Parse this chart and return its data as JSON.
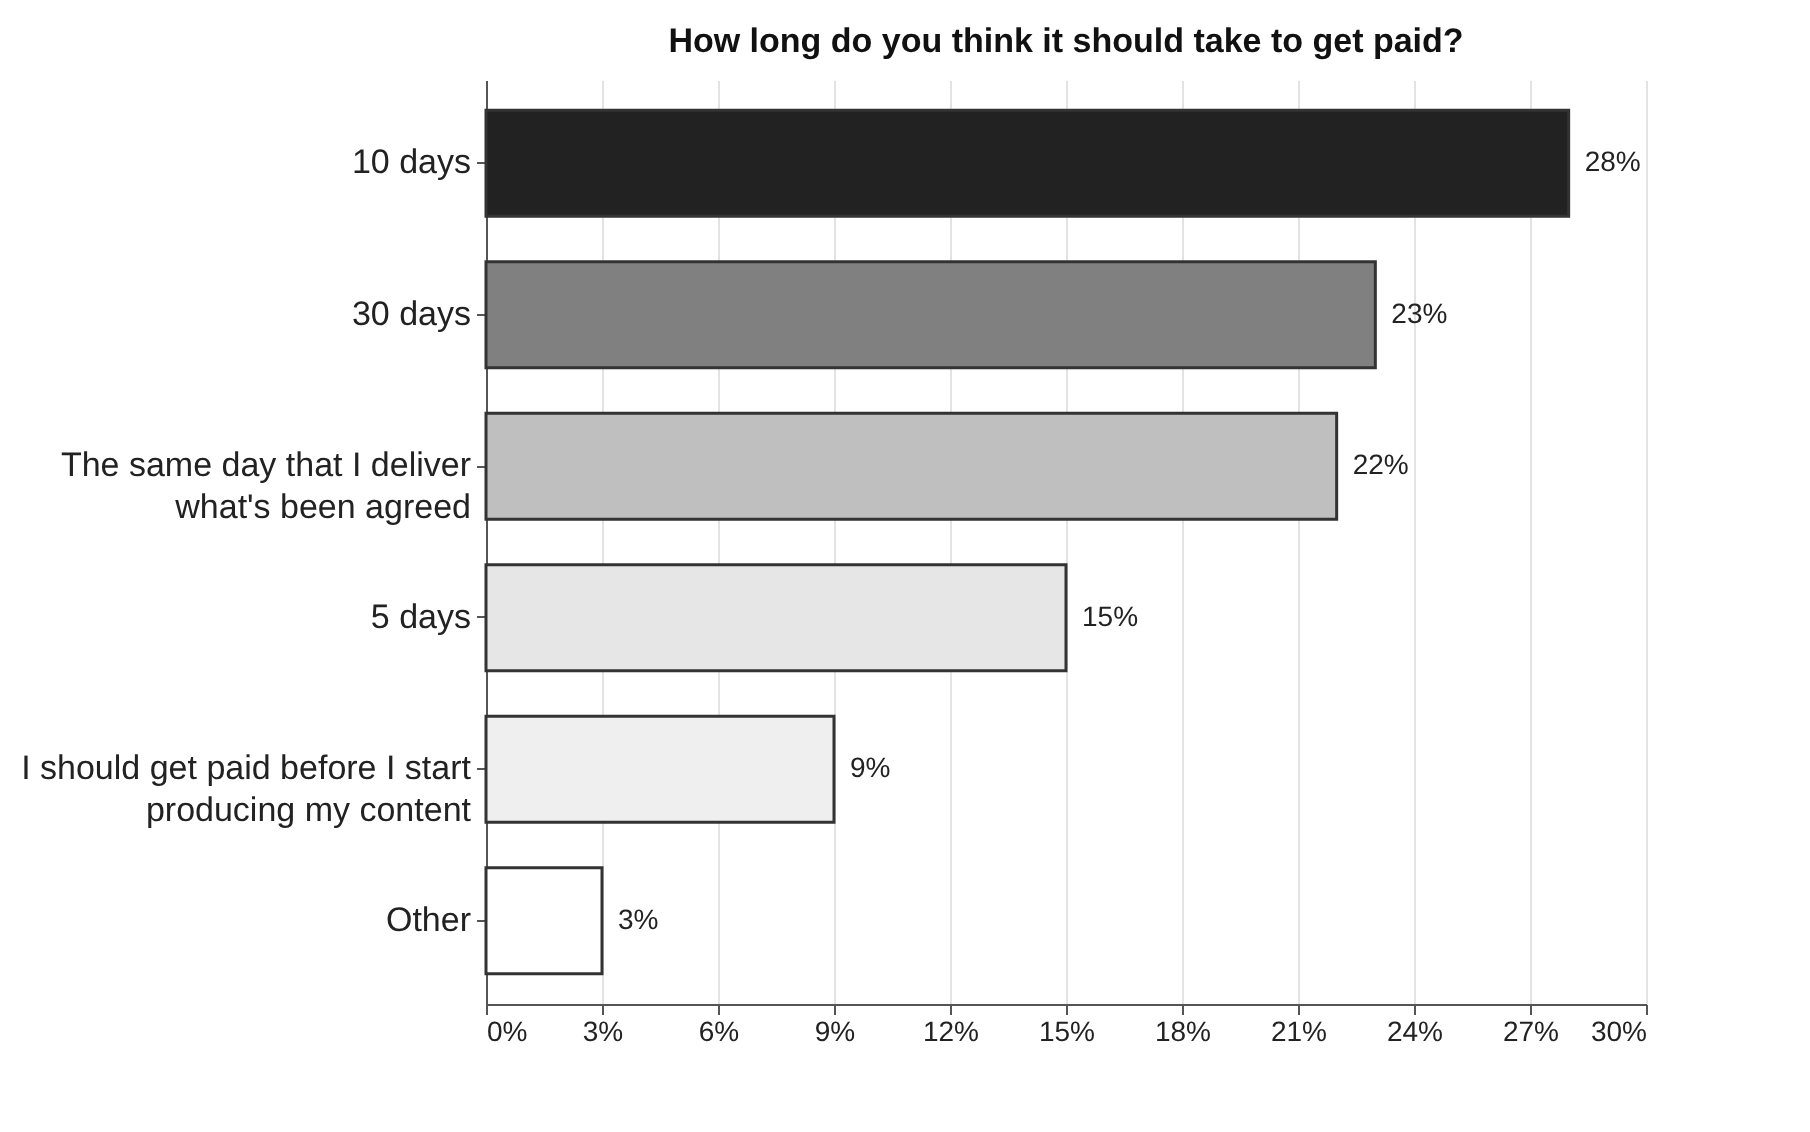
{
  "chart_data": {
    "type": "bar",
    "orientation": "horizontal",
    "title": "How long do you think it should take to get paid?",
    "categories": [
      "10 days",
      "30 days",
      "The same day that I deliver what's been agreed",
      "5 days",
      "I should get paid before I start producing my content",
      "Other"
    ],
    "values": [
      28,
      23,
      22,
      15,
      9,
      3
    ],
    "colors": [
      "#222222",
      "#808080",
      "#bfbfbf",
      "#e6e6e6",
      "#efefef",
      "#ffffff"
    ],
    "value_labels": [
      "28%",
      "23%",
      "22%",
      "15%",
      "9%",
      "3%"
    ],
    "xlim": [
      0,
      30
    ],
    "xticks": [
      {
        "value": 0,
        "label": "0%"
      },
      {
        "value": 3,
        "label": "3%"
      },
      {
        "value": 6,
        "label": "6%"
      },
      {
        "value": 9,
        "label": "9%"
      },
      {
        "value": 12,
        "label": "12%"
      },
      {
        "value": 15,
        "label": "15%"
      },
      {
        "value": 18,
        "label": "18%"
      },
      {
        "value": 21,
        "label": "21%"
      },
      {
        "value": 24,
        "label": "24%"
      },
      {
        "value": 27,
        "label": "27%"
      },
      {
        "value": 30,
        "label": "30%"
      }
    ],
    "grid": "x"
  }
}
